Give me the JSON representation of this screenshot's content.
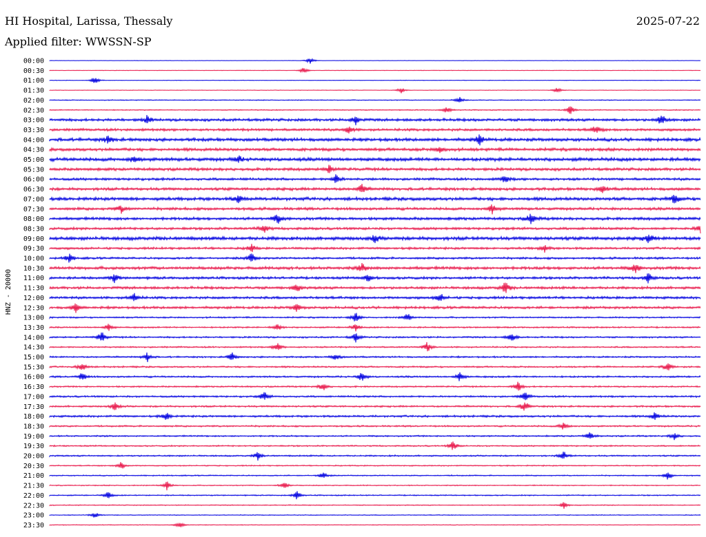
{
  "header": {
    "station": "HI Hospital, Larissa, Thessaly",
    "date": "2025-07-22",
    "filter": "Applied filter: WWSSN-SP"
  },
  "chart_data": {
    "type": "line",
    "title": "HI Hospital, Larissa, Thessaly",
    "subtitle": "Applied filter: WWSSN-SP",
    "ylabel": "HNZ - 20000",
    "colors": [
      "#0000e0",
      "#e8174a"
    ],
    "trace_labels": [
      "00:00",
      "00:30",
      "01:00",
      "01:30",
      "02:00",
      "02:30",
      "03:00",
      "03:30",
      "04:00",
      "04:30",
      "05:00",
      "05:30",
      "06:00",
      "06:30",
      "07:00",
      "07:30",
      "08:00",
      "08:30",
      "09:00",
      "09:30",
      "10:00",
      "10:30",
      "11:00",
      "11:30",
      "12:00",
      "12:30",
      "13:00",
      "13:30",
      "14:00",
      "14:30",
      "15:00",
      "15:30",
      "16:00",
      "16:30",
      "17:00",
      "17:30",
      "18:00",
      "18:30",
      "19:00",
      "19:30",
      "20:00",
      "20:30",
      "21:00",
      "21:30",
      "22:00",
      "22:30",
      "23:00",
      "23:30"
    ],
    "noise_level": [
      0.3,
      0.4,
      0.4,
      0.4,
      0.7,
      0.8,
      2.2,
      2.0,
      2.6,
      2.4,
      2.8,
      2.3,
      2.0,
      2.3,
      2.6,
      2.2,
      2.3,
      2.0,
      2.8,
      1.8,
      1.7,
      2.4,
      2.0,
      2.1,
      2.0,
      2.0,
      1.2,
      1.2,
      1.3,
      1.2,
      1.3,
      1.3,
      1.4,
      1.2,
      1.4,
      1.4,
      1.6,
      1.3,
      1.2,
      1.1,
      1.2,
      0.9,
      0.9,
      0.8,
      0.9,
      0.7,
      0.6,
      0.6
    ],
    "events": [
      [
        [
          0.4,
          5
        ]
      ],
      [
        [
          0.39,
          5
        ]
      ],
      [
        [
          0.07,
          6
        ]
      ],
      [
        [
          0.54,
          5
        ],
        [
          0.78,
          5
        ]
      ],
      [
        [
          0.63,
          5
        ]
      ],
      [
        [
          0.61,
          5
        ],
        [
          0.8,
          7
        ]
      ],
      [
        [
          0.15,
          6
        ],
        [
          0.47,
          7
        ],
        [
          0.94,
          9
        ]
      ],
      [
        [
          0.46,
          7
        ],
        [
          0.84,
          7
        ]
      ],
      [
        [
          0.09,
          6
        ],
        [
          0.66,
          8
        ]
      ],
      [
        [
          0.6,
          6
        ]
      ],
      [
        [
          0.13,
          6
        ],
        [
          0.29,
          5
        ]
      ],
      [
        [
          0.43,
          6
        ]
      ],
      [
        [
          0.44,
          7
        ],
        [
          0.7,
          6
        ]
      ],
      [
        [
          0.48,
          8
        ],
        [
          0.85,
          6
        ]
      ],
      [
        [
          0.29,
          6
        ],
        [
          0.96,
          7
        ]
      ],
      [
        [
          0.11,
          6
        ],
        [
          0.68,
          7
        ]
      ],
      [
        [
          0.35,
          8
        ],
        [
          0.74,
          9
        ]
      ],
      [
        [
          0.33,
          6
        ],
        [
          1.0,
          8
        ]
      ],
      [
        [
          0.5,
          6
        ],
        [
          0.92,
          7
        ]
      ],
      [
        [
          0.31,
          6
        ],
        [
          0.76,
          6
        ]
      ],
      [
        [
          0.03,
          7
        ],
        [
          0.31,
          8
        ]
      ],
      [
        [
          0.48,
          7
        ],
        [
          0.9,
          8
        ]
      ],
      [
        [
          0.1,
          7
        ],
        [
          0.49,
          6
        ],
        [
          0.92,
          8
        ]
      ],
      [
        [
          0.38,
          6
        ],
        [
          0.7,
          9
        ]
      ],
      [
        [
          0.13,
          7
        ],
        [
          0.6,
          7
        ]
      ],
      [
        [
          0.04,
          7
        ],
        [
          0.38,
          6
        ]
      ],
      [
        [
          0.47,
          8
        ],
        [
          0.55,
          7
        ]
      ],
      [
        [
          0.09,
          6
        ],
        [
          0.35,
          6
        ],
        [
          0.47,
          6
        ]
      ],
      [
        [
          0.08,
          9
        ],
        [
          0.47,
          8
        ],
        [
          0.71,
          8
        ]
      ],
      [
        [
          0.35,
          7
        ],
        [
          0.58,
          8
        ]
      ],
      [
        [
          0.15,
          7
        ],
        [
          0.28,
          7
        ],
        [
          0.44,
          6
        ]
      ],
      [
        [
          0.05,
          8
        ],
        [
          0.95,
          7
        ]
      ],
      [
        [
          0.05,
          7
        ],
        [
          0.48,
          8
        ],
        [
          0.63,
          7
        ]
      ],
      [
        [
          0.42,
          7
        ],
        [
          0.72,
          8
        ]
      ],
      [
        [
          0.33,
          8
        ],
        [
          0.73,
          8
        ]
      ],
      [
        [
          0.1,
          7
        ],
        [
          0.73,
          9
        ]
      ],
      [
        [
          0.18,
          7
        ],
        [
          0.93,
          6
        ]
      ],
      [
        [
          0.79,
          7
        ]
      ],
      [
        [
          0.83,
          6
        ],
        [
          0.96,
          6
        ]
      ],
      [
        [
          0.62,
          8
        ]
      ],
      [
        [
          0.32,
          6
        ],
        [
          0.79,
          7
        ]
      ],
      [
        [
          0.11,
          6
        ]
      ],
      [
        [
          0.42,
          6
        ],
        [
          0.95,
          7
        ]
      ],
      [
        [
          0.18,
          7
        ],
        [
          0.36,
          6
        ]
      ],
      [
        [
          0.09,
          6
        ],
        [
          0.38,
          6
        ]
      ],
      [
        [
          0.79,
          5
        ]
      ],
      [
        [
          0.07,
          5
        ]
      ],
      [
        [
          0.2,
          5
        ]
      ]
    ]
  }
}
